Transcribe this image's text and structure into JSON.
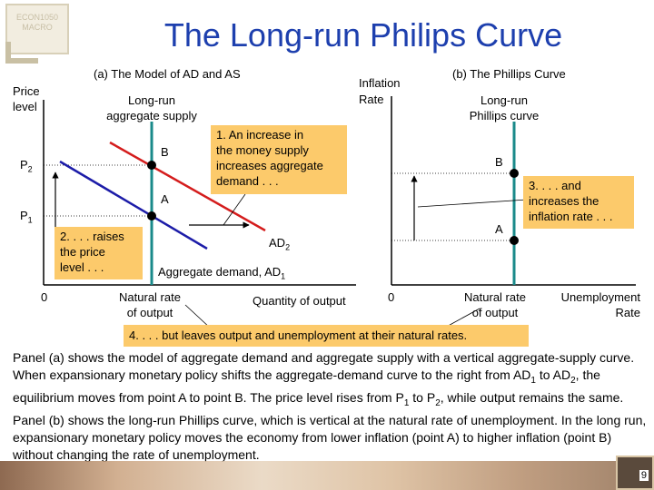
{
  "logo": {
    "line1": "ECON1050",
    "line2": "MACRO"
  },
  "title": "The Long-run Philips Curve",
  "panel_a": {
    "heading": "(a) The Model of AD and  AS",
    "y_axis_label_line1": "Price",
    "y_axis_label_line2": "level",
    "lras_line1": "Long-run",
    "lras_line2": "aggregate supply",
    "p1": "P",
    "p1_sub": "1",
    "p2": "P",
    "p2_sub": "2",
    "point_a": "A",
    "point_b": "B",
    "origin": "0",
    "natural_rate_line1": "Natural rate",
    "natural_rate_line2": "of output",
    "x_axis_label": "Quantity of output",
    "ad2": "AD",
    "ad2_sub": "2",
    "ad1": "Aggregate demand, AD",
    "ad1_sub": "1"
  },
  "panel_b": {
    "heading": "(b) The Phillips  Curve",
    "y_axis_label_line1": "Inflation",
    "y_axis_label_line2": "Rate",
    "lrpc_line1": "Long-run",
    "lrpc_line2": "Phillips curve",
    "point_a": "A",
    "point_b": "B",
    "origin": "0",
    "natural_rate_line1": "Natural rate",
    "natural_rate_line2": "of output",
    "x_axis_label_line1": "Unemployment",
    "x_axis_label_line2": "Rate"
  },
  "callouts": {
    "c1_line1": "1. An increase in",
    "c1_line2": "the money supply",
    "c1_line3": "increases aggregate",
    "c1_line4": "demand . . .",
    "c2_line1": "2. . . . raises",
    "c2_line2": "the price",
    "c2_line3": "level . . .",
    "c3_line1": "3. . . . and",
    "c3_line2": "increases the",
    "c3_line3": "inflation rate . . .",
    "c4": "4. . . . but leaves output and unemployment at their natural rates."
  },
  "paragraph": "Panel (a) shows the model of aggregate demand and aggregate supply with a vertical aggregate-supply curve. When expansionary monetary policy shifts the aggregate-demand curve to the right from AD1 to AD2, the equilibrium moves from point A to point B. The price level rises from P1 to P2, while output remains the same. Panel (b) shows the long-run Phillips curve, which is vertical at  the natural rate of unemployment. In the long run, expansionary monetary policy moves the  economy from lower inflation (point A) to higher inflation (point B) without changing the rate of unemployment.",
  "page_number": "9",
  "colors": {
    "title": "#1d3fae",
    "ad1": "#1c1ca8",
    "ad2": "#d41c1c",
    "vertical": "#1a8a8a",
    "callout": "#fcca6b"
  }
}
